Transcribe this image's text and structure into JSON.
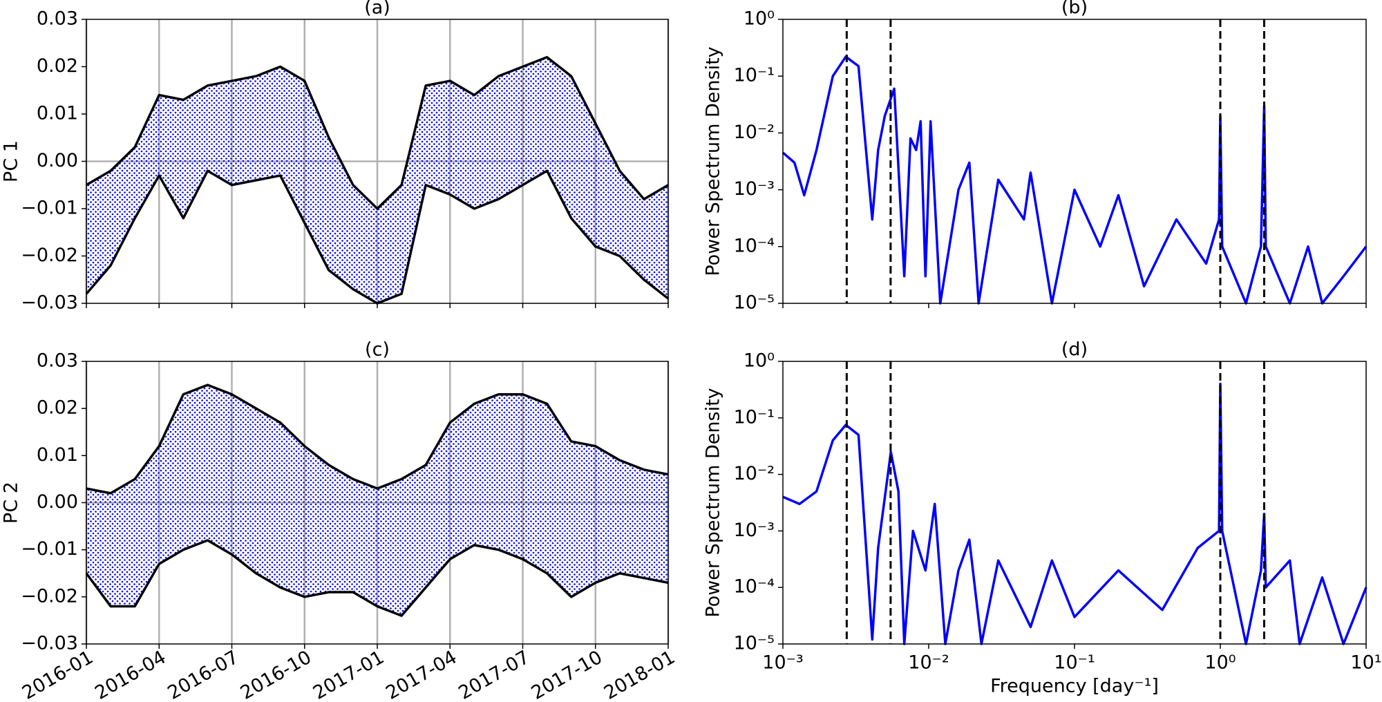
{
  "chart_data": [
    {
      "type": "line",
      "title": "(a)",
      "y_label": "PC 1",
      "x": [
        "2016-01",
        "2016-02",
        "2016-03",
        "2016-04",
        "2016-05",
        "2016-06",
        "2016-07",
        "2016-08",
        "2016-09",
        "2016-10",
        "2016-11",
        "2016-12",
        "2017-01",
        "2017-02",
        "2017-03",
        "2017-04",
        "2017-05",
        "2017-06",
        "2017-07",
        "2017-08",
        "2017-09",
        "2017-10",
        "2017-11",
        "2017-12",
        "2018-01"
      ],
      "xlim": [
        "2016-01",
        "2018-01"
      ],
      "xticks": [
        "2016-01",
        "2016-04",
        "2016-07",
        "2016-10",
        "2017-01",
        "2017-04",
        "2017-07",
        "2017-10",
        "2018-01"
      ],
      "xtick_labels": false,
      "ylim": [
        -0.03,
        0.03
      ],
      "yticks": [
        {
          "value": -0.03,
          "label": "−0.03"
        },
        {
          "value": -0.02,
          "label": "−0.02"
        },
        {
          "value": -0.01,
          "label": "−0.01"
        },
        {
          "value": 0,
          "label": "0.00"
        },
        0.01,
        0.02,
        0.03
      ],
      "grid": "x",
      "zero_line": true,
      "band_color": "#0000ff",
      "series": [
        {
          "color": "#000000",
          "values": [
            -0.005,
            -0.002,
            0.003,
            0.014,
            0.013,
            0.016,
            0.017,
            0.018,
            0.02,
            0.017,
            0.005,
            -0.005,
            -0.01,
            -0.005,
            0.016,
            0.017,
            0.014,
            0.018,
            0.02,
            0.022,
            0.018,
            0.008,
            -0.002,
            -0.008,
            -0.005
          ]
        },
        {
          "color": "#000000",
          "values": [
            -0.028,
            -0.022,
            -0.012,
            -0.003,
            -0.012,
            -0.002,
            -0.005,
            -0.004,
            -0.003,
            -0.013,
            -0.023,
            -0.027,
            -0.03,
            -0.028,
            -0.005,
            -0.007,
            -0.01,
            -0.008,
            -0.005,
            -0.002,
            -0.012,
            -0.018,
            -0.02,
            -0.025,
            -0.029
          ]
        }
      ]
    },
    {
      "type": "line",
      "title": "(b)",
      "y_label": "Power Spectrum Density",
      "xscale": "log",
      "yscale": "log",
      "x": [
        0.001,
        0.0012,
        0.0014,
        0.0017,
        0.0022,
        0.0027,
        0.0033,
        0.0041,
        0.0045,
        0.005,
        0.0058,
        0.0068,
        0.0075,
        0.0082,
        0.0088,
        0.0095,
        0.0103,
        0.012,
        0.016,
        0.019,
        0.022,
        0.03,
        0.045,
        0.05,
        0.07,
        0.1,
        0.15,
        0.2,
        0.3,
        0.5,
        0.8,
        0.98,
        1.0,
        1.03,
        1.5,
        1.9,
        2.0,
        2.05,
        3.0,
        4.0,
        5.0,
        7.0,
        10.0
      ],
      "xlim": [
        0.001,
        10
      ],
      "xticks": [
        0.001,
        0.01,
        0.1,
        1,
        10
      ],
      "xtick_labels": false,
      "ylim": [
        1e-05,
        1
      ],
      "yticks": [
        {
          "value": 1e-05,
          "label": "10⁻⁵"
        },
        {
          "value": 0.0001,
          "label": "10⁻⁴"
        },
        {
          "value": 0.001,
          "label": "10⁻³"
        },
        {
          "value": 0.01,
          "label": "10⁻²"
        },
        {
          "value": 0.1,
          "label": "10⁻¹"
        },
        {
          "value": 1,
          "label": "10⁰"
        }
      ],
      "vlines": [
        0.00274,
        0.00548,
        1,
        2
      ],
      "series": [
        {
          "color": "#0000ff",
          "values": [
            0.0045,
            0.003,
            0.0008,
            0.005,
            0.1,
            0.22,
            0.15,
            0.0003,
            0.005,
            0.02,
            0.06,
            3e-05,
            0.008,
            0.005,
            0.016,
            3e-05,
            0.016,
            1e-05,
            0.001,
            0.003,
            1e-05,
            0.0015,
            0.0003,
            0.002,
            1e-05,
            0.001,
            0.0001,
            0.0008,
            2e-05,
            0.0003,
            5e-05,
            0.0003,
            0.02,
            0.0001,
            1e-05,
            0.0001,
            0.03,
            0.0001,
            1e-05,
            0.0001,
            1e-05,
            3e-05,
            0.0001
          ]
        }
      ]
    },
    {
      "type": "line",
      "title": "(c)",
      "y_label": "PC 2",
      "x": [
        "2016-01",
        "2016-02",
        "2016-03",
        "2016-04",
        "2016-05",
        "2016-06",
        "2016-07",
        "2016-08",
        "2016-09",
        "2016-10",
        "2016-11",
        "2016-12",
        "2017-01",
        "2017-02",
        "2017-03",
        "2017-04",
        "2017-05",
        "2017-06",
        "2017-07",
        "2017-08",
        "2017-09",
        "2017-10",
        "2017-11",
        "2017-12",
        "2018-01"
      ],
      "xlim": [
        "2016-01",
        "2018-01"
      ],
      "xticks": [
        "2016-01",
        "2016-04",
        "2016-07",
        "2016-10",
        "2017-01",
        "2017-04",
        "2017-07",
        "2017-10",
        "2018-01"
      ],
      "xtick_labels": true,
      "ylim": [
        -0.03,
        0.03
      ],
      "yticks": [
        {
          "value": -0.03,
          "label": "−0.03"
        },
        {
          "value": -0.02,
          "label": "−0.02"
        },
        {
          "value": -0.01,
          "label": "−0.01"
        },
        {
          "value": 0,
          "label": "0.00"
        },
        0.01,
        0.02,
        0.03
      ],
      "grid": "x",
      "zero_line": true,
      "band_color": "#0000ff",
      "series": [
        {
          "color": "#000000",
          "values": [
            0.003,
            0.002,
            0.005,
            0.012,
            0.023,
            0.025,
            0.023,
            0.02,
            0.017,
            0.012,
            0.008,
            0.005,
            0.003,
            0.005,
            0.008,
            0.017,
            0.021,
            0.023,
            0.023,
            0.021,
            0.013,
            0.012,
            0.009,
            0.007,
            0.006
          ]
        },
        {
          "color": "#000000",
          "values": [
            -0.015,
            -0.022,
            -0.022,
            -0.013,
            -0.01,
            -0.008,
            -0.011,
            -0.015,
            -0.018,
            -0.02,
            -0.019,
            -0.019,
            -0.022,
            -0.024,
            -0.018,
            -0.012,
            -0.009,
            -0.01,
            -0.012,
            -0.015,
            -0.02,
            -0.017,
            -0.015,
            -0.016,
            -0.017
          ]
        }
      ]
    },
    {
      "type": "line",
      "title": "(d)",
      "y_label": "Power Spectrum Density",
      "x_label": "Frequency [day⁻¹]",
      "xscale": "log",
      "yscale": "log",
      "x": [
        0.001,
        0.0013,
        0.0017,
        0.0022,
        0.0027,
        0.0033,
        0.0041,
        0.0045,
        0.0055,
        0.0062,
        0.0068,
        0.0078,
        0.0095,
        0.011,
        0.013,
        0.016,
        0.019,
        0.023,
        0.03,
        0.05,
        0.07,
        0.1,
        0.2,
        0.4,
        0.7,
        0.98,
        1.0,
        1.03,
        1.5,
        1.9,
        2.0,
        2.05,
        3.0,
        3.5,
        5.0,
        7.0,
        10.0
      ],
      "xlim": [
        0.001,
        10
      ],
      "xticks": [
        {
          "value": 0.001,
          "label": "10⁻³"
        },
        {
          "value": 0.01,
          "label": "10⁻²"
        },
        {
          "value": 0.1,
          "label": "10⁻¹"
        },
        {
          "value": 1,
          "label": "10⁰"
        },
        {
          "value": 10,
          "label": "10¹"
        }
      ],
      "xtick_labels": true,
      "ylim": [
        1e-05,
        1
      ],
      "yticks": [
        {
          "value": 1e-05,
          "label": "10⁻⁵"
        },
        {
          "value": 0.0001,
          "label": "10⁻⁴"
        },
        {
          "value": 0.001,
          "label": "10⁻³"
        },
        {
          "value": 0.01,
          "label": "10⁻²"
        },
        {
          "value": 0.1,
          "label": "10⁻¹"
        },
        {
          "value": 1,
          "label": "10⁰"
        }
      ],
      "vlines": [
        0.00274,
        0.00548,
        1,
        2
      ],
      "series": [
        {
          "color": "#0000ff",
          "values": [
            0.004,
            0.003,
            0.005,
            0.04,
            0.075,
            0.05,
            1.2e-05,
            0.0005,
            0.025,
            0.005,
            1e-05,
            0.001,
            0.0002,
            0.003,
            1e-05,
            0.0002,
            0.0007,
            1e-05,
            0.0003,
            2e-05,
            0.0003,
            3e-05,
            0.0002,
            4e-05,
            0.0005,
            0.001,
            0.4,
            0.001,
            1e-05,
            0.0002,
            0.002,
            0.0001,
            0.0003,
            1e-05,
            0.00015,
            1e-05,
            0.0001
          ]
        }
      ]
    }
  ]
}
